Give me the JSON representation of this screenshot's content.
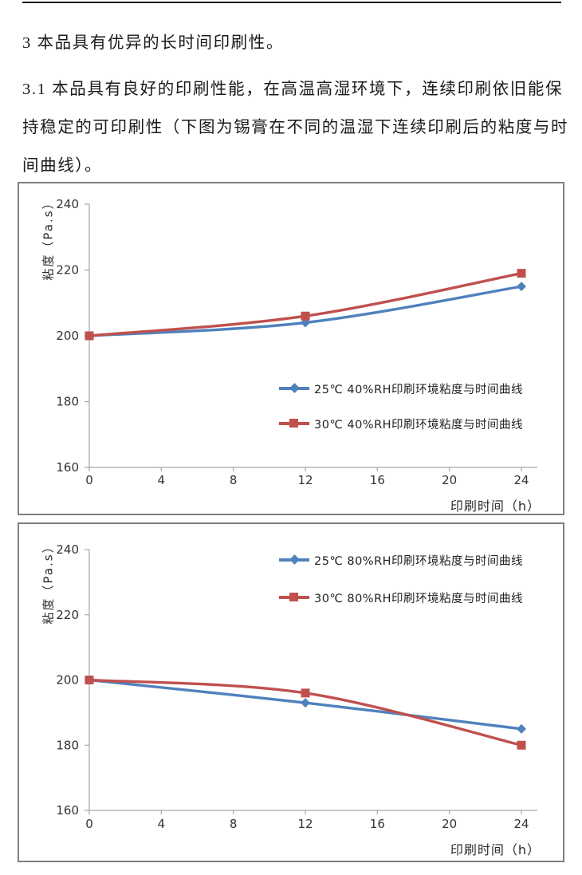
{
  "document": {
    "heading_3": "3 本品具有优异的长时间印刷性。",
    "para_3_1_line1": "3.1 本品具有良好的印刷性能，在高温高湿环境下，连续印刷依旧能保",
    "para_3_1_line2": "持稳定的可印刷性（下图为锡膏在不同的温湿下连续印刷后的粘度与时",
    "para_3_1_line3": "间曲线）。"
  },
  "colors": {
    "series_blue": "#4F81BD",
    "series_red": "#C0504D",
    "axis_gray": "#A6A6A6",
    "chart_border": "#7F7F7F",
    "text": "#1A1A1A"
  },
  "chart_data": [
    {
      "type": "line",
      "x": [
        0,
        12,
        24
      ],
      "xlim": [
        0,
        24
      ],
      "x_ticks": [
        0,
        4,
        8,
        12,
        16,
        20,
        24
      ],
      "ylim": [
        160,
        240
      ],
      "y_ticks": [
        240,
        220,
        200,
        180,
        160
      ],
      "xlabel": "印刷时间（h）",
      "ylabel": "粘度（Pa.s）",
      "smooth": true,
      "grid": false,
      "legend_position": "middle-right",
      "series": [
        {
          "name": "25℃ 40%RH印刷环境粘度与时间曲线",
          "marker": "diamond",
          "color": "#4F81BD",
          "values": [
            200,
            204,
            215
          ]
        },
        {
          "name": "30℃ 40%RH印刷环境粘度与时间曲线",
          "marker": "square",
          "color": "#C0504D",
          "values": [
            200,
            206,
            219
          ]
        }
      ]
    },
    {
      "type": "line",
      "x": [
        0,
        12,
        24
      ],
      "xlim": [
        0,
        24
      ],
      "x_ticks": [
        0,
        4,
        8,
        12,
        16,
        20,
        24
      ],
      "ylim": [
        160,
        240
      ],
      "y_ticks": [
        240,
        220,
        200,
        180,
        160
      ],
      "xlabel": "印刷时间（h）",
      "ylabel": "粘度（Pa.s）",
      "smooth": true,
      "grid": false,
      "legend_position": "top-right",
      "series": [
        {
          "name": "25℃ 80%RH印刷环境粘度与时间曲线",
          "marker": "diamond",
          "color": "#4F81BD",
          "values": [
            200,
            193,
            185
          ]
        },
        {
          "name": "30℃ 80%RH印刷环境粘度与时间曲线",
          "marker": "square",
          "color": "#C0504D",
          "values": [
            200,
            196,
            180
          ]
        }
      ]
    }
  ]
}
